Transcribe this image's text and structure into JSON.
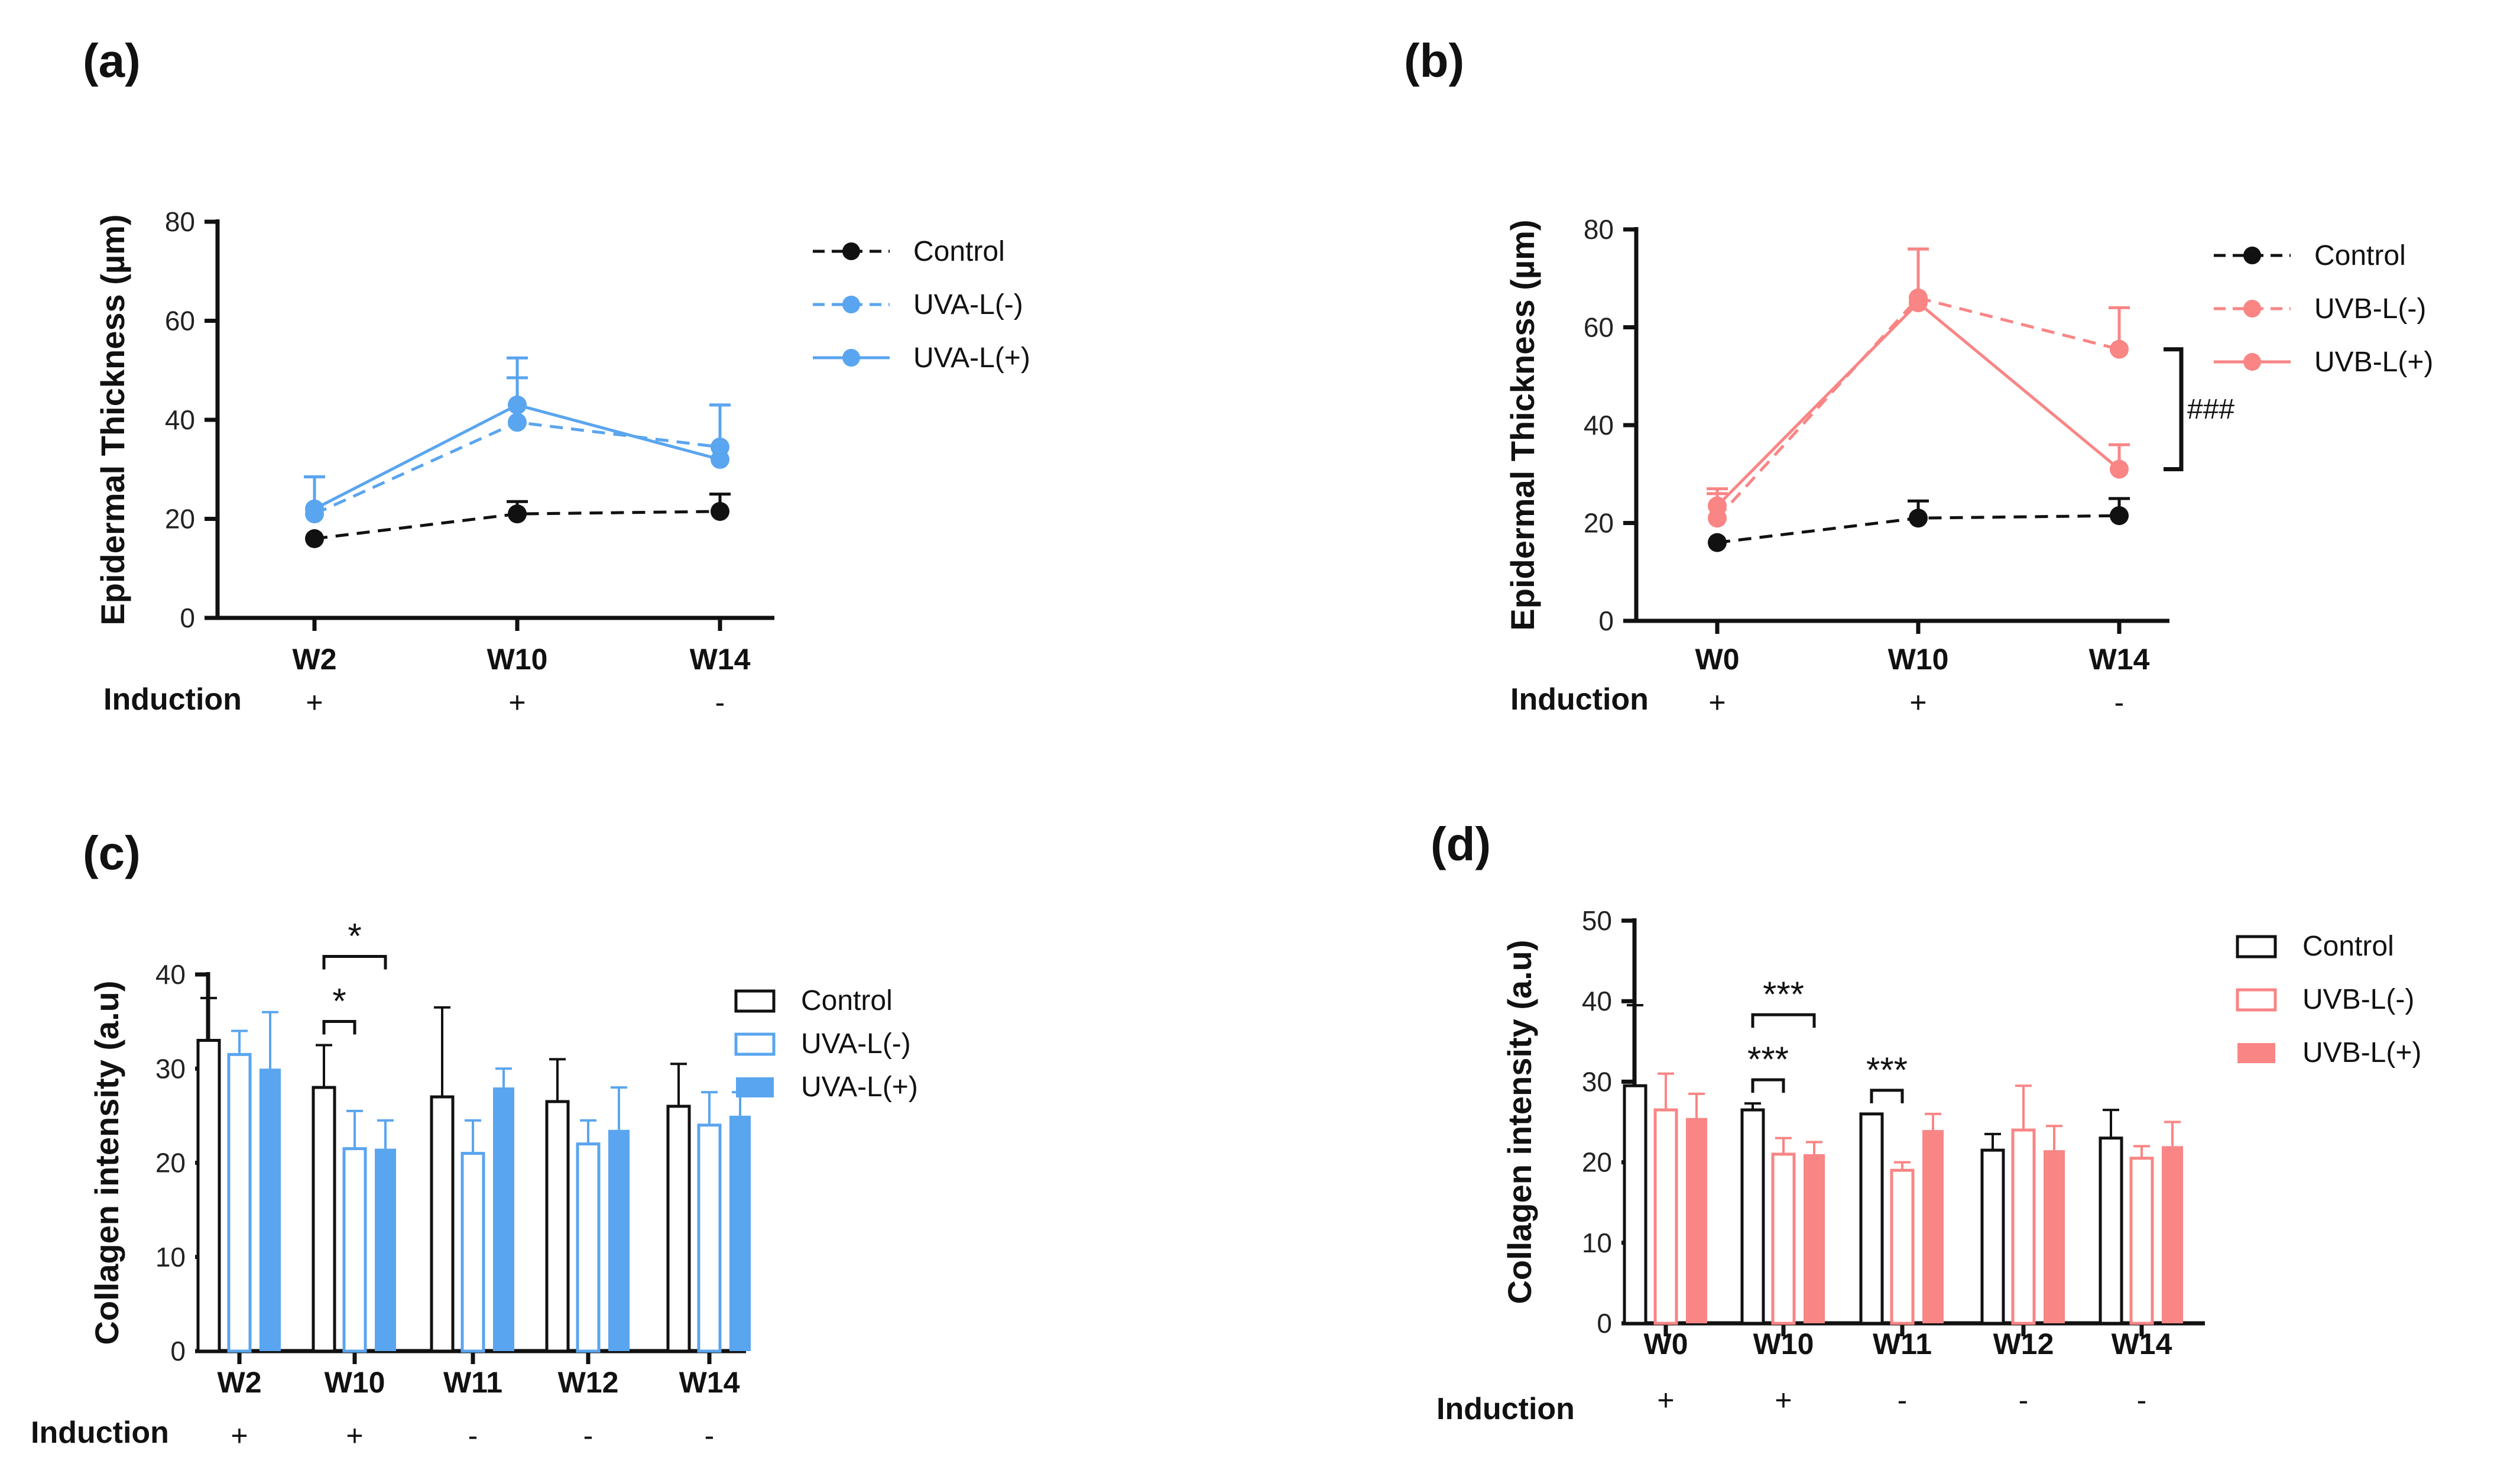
{
  "chart_data": [
    {
      "panel": "(a)",
      "type": "line",
      "ylabel": "Epidermal Thickness (µm)",
      "categories": [
        "W2",
        "W10",
        "W14"
      ],
      "ylim": [
        0,
        80
      ],
      "yticks": [
        "0",
        "20",
        "40",
        "60",
        "80"
      ],
      "row_label": "Induction",
      "induction": [
        "+",
        "+",
        "-"
      ],
      "series": [
        {
          "name": "Control",
          "color": "#111111",
          "dash": true,
          "values": [
            16,
            21,
            21.5
          ],
          "errors": [
            0,
            2.5,
            3.5
          ]
        },
        {
          "name": "UVA-L(-)",
          "color": "#5aa5ef",
          "dash": true,
          "values": [
            21,
            39.5,
            34.5
          ],
          "errors": [
            7.5,
            9,
            8.5
          ]
        },
        {
          "name": "UVA-L(+)",
          "color": "#5aa5ef",
          "dash": false,
          "values": [
            22,
            43,
            32
          ],
          "errors": [
            6.5,
            9.5,
            11
          ]
        }
      ]
    },
    {
      "panel": "(b)",
      "type": "line",
      "ylabel": "Epidermal Thickness (µm)",
      "categories": [
        "W0",
        "W10",
        "W14"
      ],
      "ylim": [
        0,
        80
      ],
      "yticks": [
        "0",
        "20",
        "40",
        "60",
        "80"
      ],
      "row_label": "Induction",
      "induction": [
        "+",
        "+",
        "-"
      ],
      "annotation": "###",
      "series": [
        {
          "name": "Control",
          "color": "#111111",
          "dash": true,
          "values": [
            16,
            21,
            21.5
          ],
          "errors": [
            0,
            3.5,
            3.5
          ]
        },
        {
          "name": "UVB-L(-)",
          "color": "#f98585",
          "dash": true,
          "values": [
            21,
            66,
            55.5
          ],
          "errors": [
            5,
            10,
            8.5
          ]
        },
        {
          "name": "UVB-L(+)",
          "color": "#f98585",
          "dash": false,
          "values": [
            23.5,
            65,
            31
          ],
          "errors": [
            3.5,
            11,
            5
          ]
        }
      ]
    },
    {
      "panel": "(c)",
      "type": "bar",
      "ylabel": "Collagen intensity (a.u)",
      "categories": [
        "W2",
        "W10",
        "W11",
        "W12",
        "W14"
      ],
      "ylim": [
        0,
        40
      ],
      "yticks": [
        "0",
        "10",
        "20",
        "30",
        "40"
      ],
      "row_label": "Induction",
      "induction": [
        "+",
        "+",
        "-",
        "-",
        "-"
      ],
      "series": [
        {
          "name": "Control",
          "color": "#111111",
          "style": "outline",
          "values": [
            33,
            28,
            27,
            26.5,
            26
          ],
          "errors": [
            4.5,
            4.5,
            9.5,
            4.5,
            4.5
          ]
        },
        {
          "name": "UVA-L(-)",
          "color": "#5aa5ef",
          "style": "outline",
          "values": [
            31.5,
            21.5,
            21,
            22,
            24
          ],
          "errors": [
            2.5,
            4,
            3.5,
            2.5,
            3.5
          ]
        },
        {
          "name": "UVA-L(+)",
          "color": "#5aa5ef",
          "style": "filled",
          "values": [
            30,
            21.5,
            28,
            23.5,
            25
          ],
          "errors": [
            6,
            3,
            2,
            4.5,
            2.5
          ]
        }
      ],
      "significance": [
        {
          "group": 1,
          "from": 0,
          "to": 1,
          "label": "*"
        },
        {
          "group": 1,
          "from": 0,
          "to": 2,
          "label": "*"
        }
      ]
    },
    {
      "panel": "(d)",
      "type": "bar",
      "ylabel": "Collagen intensity (a.u)",
      "categories": [
        "W0",
        "W10",
        "W11",
        "W12",
        "W14"
      ],
      "ylim": [
        0,
        50
      ],
      "yticks": [
        "0",
        "10",
        "20",
        "30",
        "40",
        "50"
      ],
      "row_label": "Induction",
      "induction": [
        "+",
        "+",
        "-",
        "-",
        "-"
      ],
      "series": [
        {
          "name": "Control",
          "color": "#111111",
          "style": "outline",
          "values": [
            29.5,
            26.5,
            26,
            21.5,
            23
          ],
          "errors": [
            10,
            0.8,
            0,
            2,
            3.5
          ]
        },
        {
          "name": "UVB-L(-)",
          "color": "#f98585",
          "style": "outline",
          "values": [
            26.5,
            21,
            19,
            24,
            20.5
          ],
          "errors": [
            4.5,
            2,
            1,
            5.5,
            1.5
          ]
        },
        {
          "name": "UVB-L(+)",
          "color": "#f98585",
          "style": "filled",
          "values": [
            25.5,
            21,
            24,
            21.5,
            22
          ],
          "errors": [
            3,
            1.5,
            2,
            3,
            3
          ]
        }
      ],
      "significance": [
        {
          "group": 1,
          "from": 0,
          "to": 1,
          "label": "***"
        },
        {
          "group": 1,
          "from": 0,
          "to": 2,
          "label": "***"
        },
        {
          "group": 2,
          "from": 0,
          "to": 1,
          "label": "***"
        }
      ]
    }
  ]
}
